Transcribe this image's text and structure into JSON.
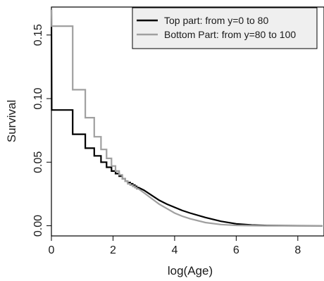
{
  "chart_data": {
    "type": "line",
    "step": true,
    "title": "",
    "xlabel": "log(Age)",
    "ylabel": "Survival",
    "xlim": [
      0,
      8.85
    ],
    "ylim": [
      -0.008,
      0.172
    ],
    "x_ticks": [
      "0",
      "2",
      "4",
      "6",
      "8"
    ],
    "y_ticks": [
      "0.00",
      "0.05",
      "0.10",
      "0.15"
    ],
    "grid": false,
    "legend_position": "top-right",
    "series": [
      {
        "name": "Top part: from y=0 to 80",
        "color": "#000000",
        "x": [
          0,
          0.01,
          0.69,
          0.69,
          1.1,
          1.1,
          1.39,
          1.39,
          1.61,
          1.61,
          1.79,
          1.79,
          1.95,
          1.95,
          2.08,
          2.08,
          2.2,
          2.2,
          2.3,
          2.3,
          2.4,
          2.4,
          2.48,
          2.48,
          2.56,
          2.56,
          2.64,
          2.64,
          2.71,
          2.71,
          2.77,
          2.77,
          2.83,
          3.0,
          3.25,
          3.5,
          3.75,
          4.0,
          4.25,
          4.5,
          5.0,
          5.5,
          6.0,
          6.5,
          7.0,
          8.0,
          8.8
        ],
        "y": [
          0.17,
          0.091,
          0.091,
          0.072,
          0.072,
          0.061,
          0.061,
          0.055,
          0.055,
          0.05,
          0.05,
          0.046,
          0.046,
          0.043,
          0.043,
          0.041,
          0.041,
          0.039,
          0.039,
          0.037,
          0.037,
          0.035,
          0.035,
          0.034,
          0.034,
          0.033,
          0.033,
          0.032,
          0.032,
          0.031,
          0.031,
          0.03,
          0.03,
          0.028,
          0.024,
          0.02,
          0.017,
          0.0145,
          0.012,
          0.01,
          0.0065,
          0.0035,
          0.0015,
          0.0006,
          0.0002,
          5e-05,
          0.0
        ]
      },
      {
        "name": "Bottom Part: from y=80 to 100",
        "color": "#a0a0a0",
        "x": [
          0,
          0.01,
          0.69,
          0.69,
          1.1,
          1.1,
          1.39,
          1.39,
          1.61,
          1.61,
          1.79,
          1.79,
          1.95,
          1.95,
          2.08,
          2.08,
          2.2,
          2.2,
          2.3,
          2.3,
          2.4,
          2.4,
          2.48,
          2.48,
          2.56,
          2.56,
          2.64,
          2.64,
          2.71,
          2.71,
          2.77,
          2.77,
          2.83,
          3.0,
          3.25,
          3.5,
          3.75,
          4.0,
          4.25,
          4.5,
          5.0,
          5.5,
          6.0,
          6.5,
          7.0,
          8.0,
          8.8
        ],
        "y": [
          0.17,
          0.157,
          0.157,
          0.107,
          0.107,
          0.085,
          0.085,
          0.07,
          0.07,
          0.06,
          0.06,
          0.053,
          0.053,
          0.047,
          0.047,
          0.043,
          0.043,
          0.04,
          0.04,
          0.037,
          0.037,
          0.035,
          0.035,
          0.033,
          0.033,
          0.032,
          0.032,
          0.031,
          0.031,
          0.03,
          0.03,
          0.029,
          0.029,
          0.026,
          0.0215,
          0.017,
          0.0135,
          0.01,
          0.0075,
          0.0055,
          0.0025,
          0.001,
          0.0003,
          0.0001,
          0.0,
          0.0,
          0.0
        ]
      }
    ]
  }
}
